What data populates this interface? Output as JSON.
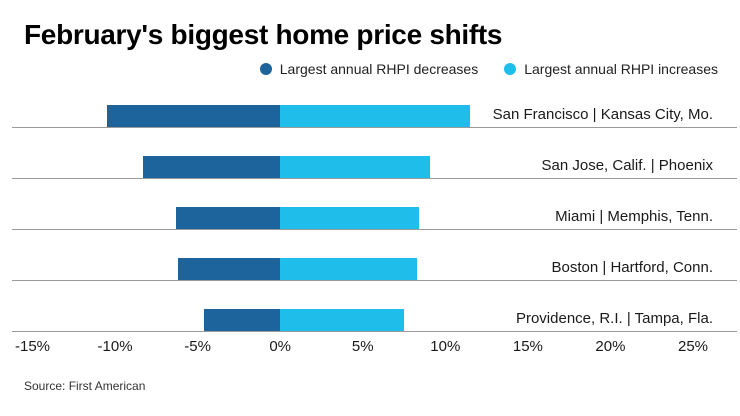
{
  "header": {
    "title": "February's biggest home price shifts"
  },
  "footer": {
    "source": "Source: First American"
  },
  "chart_data": {
    "type": "bar",
    "orientation": "horizontal",
    "diverging": true,
    "title": "February's biggest home price shifts",
    "source": "Source: First American",
    "categories": [
      "San Francisco | Kansas City, Mo.",
      "San Jose, Calif. | Phoenix",
      "Miami | Memphis, Tenn.",
      "Boston | Hartford, Conn.",
      "Providence, R.I. | Tampa, Fla."
    ],
    "series": [
      {
        "name": "Largest annual RHPI decreases",
        "color": "#1e649c",
        "values": [
          -10.5,
          -8.3,
          -6.3,
          -6.2,
          -4.6
        ]
      },
      {
        "name": "Largest annual RHPI increases",
        "color": "#1fbde9",
        "values": [
          11.5,
          9.1,
          8.4,
          8.3,
          7.5
        ]
      }
    ],
    "x_ticks": [
      "-15%",
      "-10%",
      "-5%",
      "0%",
      "5%",
      "10%",
      "15%",
      "20%",
      "25%"
    ],
    "xlim": [
      -15,
      25
    ],
    "unit": "%",
    "grid": false,
    "legend_position": "top-right",
    "ylabel": "",
    "xlabel": ""
  }
}
